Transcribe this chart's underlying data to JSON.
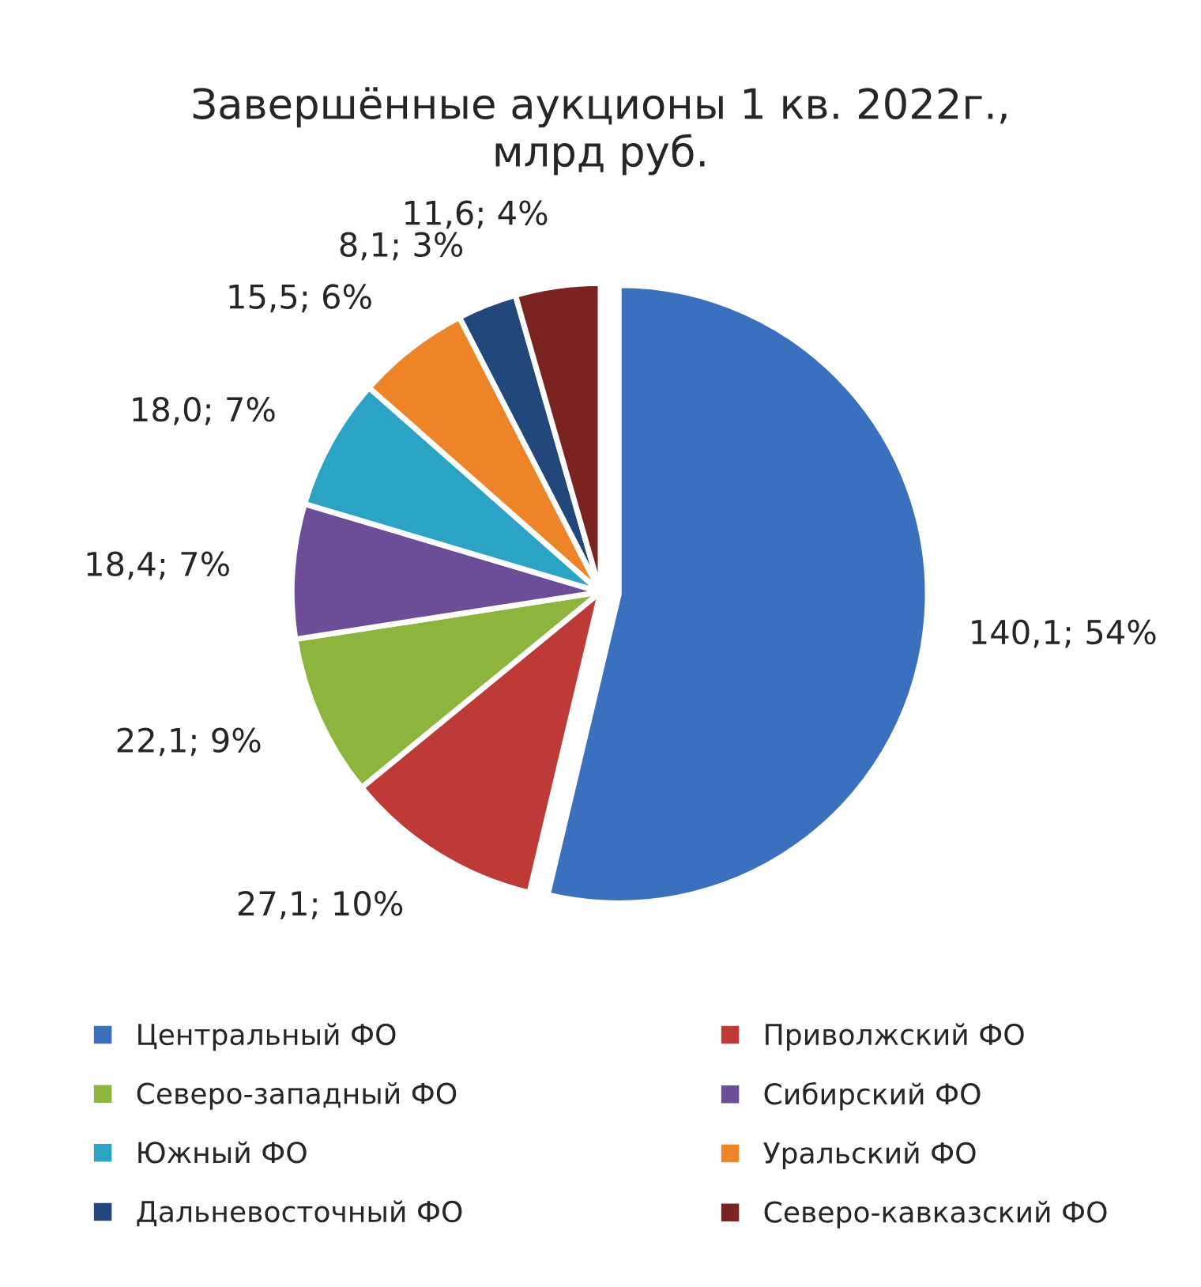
{
  "chart_data": {
    "type": "pie",
    "title": "Завершённые аукционы 1 кв. 2022г.,\nмлрд руб.",
    "categories": [
      "Центральный ФО",
      "Приволжский ФО",
      "Северо-западный ФО",
      "Сибирский ФО",
      "Южный ФО",
      "Уральский ФО",
      "Дальневосточный ФО",
      "Северо-кавказский ФО"
    ],
    "values": [
      140.1,
      27.1,
      22.1,
      18.4,
      18.0,
      15.5,
      8.1,
      11.6
    ],
    "value_labels": [
      "140,1; 54%",
      "27,1; 10%",
      "22,1; 9%",
      "18,4; 7%",
      "18,0; 7%",
      "15,5; 6%",
      "8,1; 3%",
      "11,6; 4%"
    ],
    "colors": [
      "#3a70bd",
      "#be3a37",
      "#8db53e",
      "#6b4d98",
      "#2ba3c5",
      "#ee8428",
      "#22477a",
      "#7a2320"
    ],
    "legend": "bottom"
  }
}
